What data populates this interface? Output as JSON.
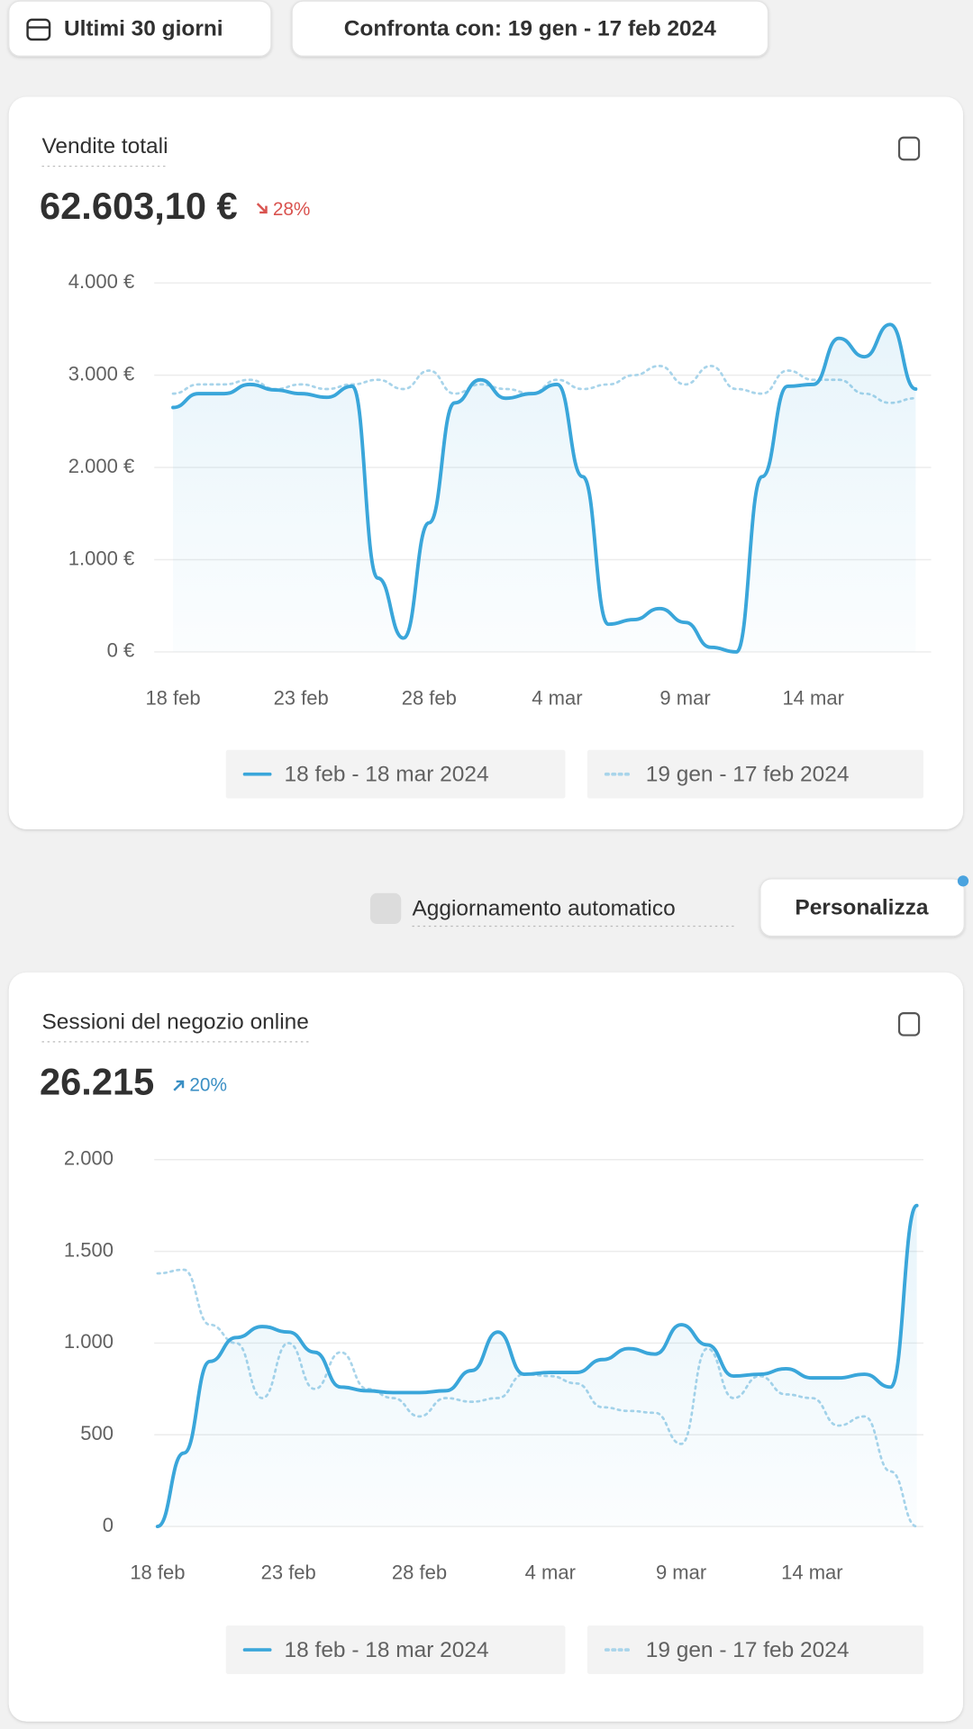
{
  "toolbar": {
    "date_range": "Ultimi 30 giorni",
    "compare": "Confronta con: 19 gen - 17 feb 2024"
  },
  "controls": {
    "auto_update": "Aggiornamento automatico",
    "customize": "Personalizza"
  },
  "chart_data": [
    {
      "type": "line",
      "title": "Vendite totali",
      "total": "62.603,10 €",
      "change": "28%",
      "trend": "down",
      "categories": [
        "18 feb",
        null,
        null,
        null,
        null,
        "23 feb",
        null,
        null,
        null,
        null,
        "28 feb",
        null,
        null,
        null,
        null,
        "4 mar",
        null,
        null,
        null,
        null,
        "9 mar",
        null,
        null,
        null,
        null,
        "14 mar",
        null,
        null,
        null,
        null
      ],
      "series": [
        {
          "name": "18 feb - 18 mar 2024",
          "color": "#3aa6da",
          "style": "solid",
          "values": [
            2650,
            2800,
            2800,
            2900,
            2840,
            2800,
            2760,
            2880,
            800,
            150,
            1400,
            2700,
            2950,
            2750,
            2800,
            2900,
            1900,
            300,
            350,
            470,
            320,
            50,
            0,
            1900,
            2880,
            2900,
            3400,
            3200,
            3550,
            2850
          ]
        },
        {
          "name": "19 gen - 17 feb 2024",
          "color": "#a8d4ea",
          "style": "dotted",
          "values": [
            2800,
            2900,
            2900,
            2950,
            2850,
            2900,
            2850,
            2900,
            2950,
            2850,
            3050,
            2800,
            2900,
            2850,
            2800,
            2950,
            2850,
            2900,
            3000,
            3100,
            2900,
            3100,
            2850,
            2800,
            3050,
            2950,
            2950,
            2800,
            2700,
            2750
          ]
        }
      ],
      "ylim": [
        0,
        4000
      ],
      "yticks": [
        {
          "value": 0,
          "label": "0 €"
        },
        {
          "value": 1000,
          "label": "1.000 €"
        },
        {
          "value": 2000,
          "label": "2.000 €"
        },
        {
          "value": 3000,
          "label": "3.000 €"
        },
        {
          "value": 4000,
          "label": "4.000 €"
        }
      ],
      "grid": true
    },
    {
      "type": "line",
      "title": "Sessioni del negozio online",
      "total": "26.215",
      "change": "20%",
      "trend": "up",
      "categories": [
        "18 feb",
        null,
        null,
        null,
        null,
        "23 feb",
        null,
        null,
        null,
        null,
        "28 feb",
        null,
        null,
        null,
        null,
        "4 mar",
        null,
        null,
        null,
        null,
        "9 mar",
        null,
        null,
        null,
        null,
        "14 mar",
        null,
        null,
        null,
        null
      ],
      "series": [
        {
          "name": "18 feb - 18 mar 2024",
          "color": "#3aa6da",
          "style": "solid",
          "values": [
            0,
            400,
            900,
            1030,
            1090,
            1060,
            950,
            760,
            740,
            730,
            730,
            740,
            850,
            1060,
            830,
            840,
            840,
            910,
            970,
            940,
            1100,
            990,
            820,
            830,
            860,
            810,
            810,
            830,
            760,
            1750
          ]
        },
        {
          "name": "19 gen - 17 feb 2024",
          "color": "#a8d4ea",
          "style": "dotted",
          "values": [
            1380,
            1400,
            1100,
            1000,
            700,
            1000,
            750,
            950,
            750,
            700,
            600,
            700,
            680,
            700,
            830,
            820,
            780,
            650,
            630,
            620,
            450,
            970,
            700,
            820,
            720,
            700,
            550,
            600,
            300,
            0
          ]
        }
      ],
      "ylim": [
        0,
        2000
      ],
      "yticks": [
        0,
        500,
        {
          "value": 1000,
          "label": "1.000"
        },
        {
          "value": 1500,
          "label": "1.500"
        },
        {
          "value": 2000,
          "label": "2.000"
        }
      ],
      "grid": true
    }
  ]
}
